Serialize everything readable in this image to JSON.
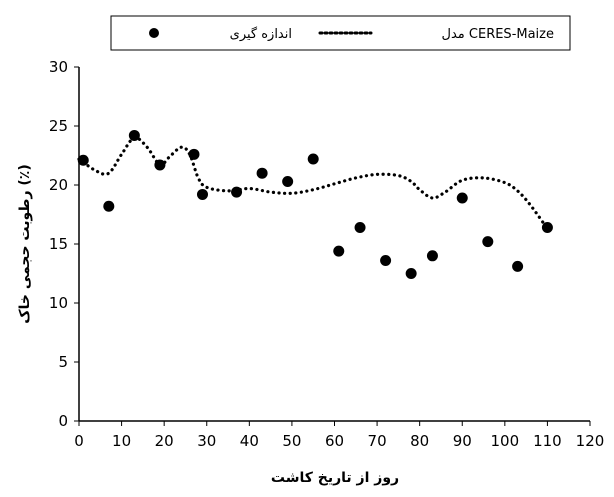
{
  "chart_data": {
    "type": "scatter",
    "xlabel": "روز از تاریخ کاشت",
    "ylabel": "رطوبت حجمی خاک (٪)",
    "xlim": [
      0,
      120
    ],
    "ylim": [
      0,
      30
    ],
    "xticks": [
      "0",
      "10",
      "20",
      "30",
      "40",
      "50",
      "60",
      "70",
      "80",
      "90",
      "100",
      "110",
      "120"
    ],
    "yticks": [
      "0",
      "5",
      "10",
      "15",
      "20",
      "25",
      "30"
    ],
    "grid": false,
    "legend_position": "top",
    "series": [
      {
        "name": "اندازه گیری",
        "style": "markers",
        "color": "#000000",
        "x": [
          1,
          7,
          13,
          19,
          27,
          29,
          37,
          43,
          49,
          55,
          61,
          66,
          72,
          78,
          83,
          90,
          96,
          103,
          110
        ],
        "y": [
          22.1,
          18.2,
          24.2,
          21.7,
          22.6,
          19.2,
          19.4,
          21.0,
          20.3,
          22.2,
          14.4,
          16.4,
          13.6,
          12.5,
          14.0,
          18.9,
          15.2,
          13.1,
          16.4
        ]
      },
      {
        "name": "مدل CERES-Maize",
        "style": "dotted-line",
        "color": "#000000",
        "x": [
          0,
          4,
          7,
          10,
          13,
          16,
          19,
          21,
          24,
          26,
          28,
          30,
          35,
          40,
          45,
          50,
          55,
          60,
          65,
          70,
          75,
          78,
          80,
          83,
          86,
          90,
          95,
          100,
          103,
          106,
          110
        ],
        "y": [
          22.2,
          21.2,
          21.0,
          22.6,
          24.0,
          23.2,
          21.7,
          22.3,
          23.2,
          22.6,
          20.6,
          19.8,
          19.5,
          19.7,
          19.4,
          19.3,
          19.6,
          20.1,
          20.6,
          20.9,
          20.8,
          20.3,
          19.6,
          18.9,
          19.4,
          20.4,
          20.6,
          20.2,
          19.5,
          18.3,
          16.3
        ]
      }
    ]
  }
}
